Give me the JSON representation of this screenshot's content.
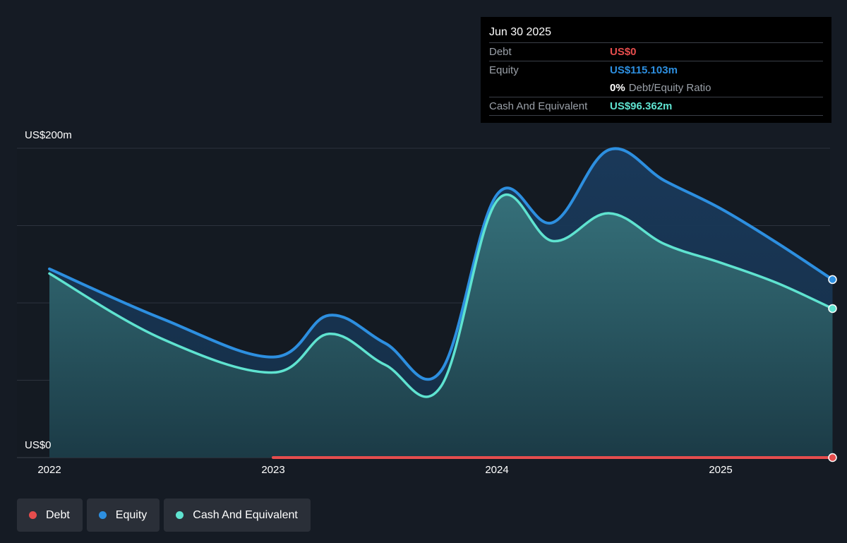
{
  "colors": {
    "background": "#151b24",
    "debt": "#e64d4d",
    "equity": "#2d8fe0",
    "cash": "#5fe3d0",
    "grid": "#2c333d"
  },
  "tooltip": {
    "date": "Jun 30 2025",
    "rows": [
      {
        "label": "Debt",
        "value": "US$0"
      },
      {
        "label": "Equity",
        "value": "US$115.103m"
      },
      {
        "ratio_pct": "0%",
        "ratio_label": "Debt/Equity Ratio"
      },
      {
        "label": "Cash And Equivalent",
        "value": "US$96.362m"
      }
    ]
  },
  "y_axis": {
    "top_label": "US$200m",
    "bottom_label": "US$0"
  },
  "x_axis": {
    "ticks": [
      "2022",
      "2023",
      "2024",
      "2025"
    ]
  },
  "legend": [
    {
      "label": "Debt",
      "color_key": "debt"
    },
    {
      "label": "Equity",
      "color_key": "equity"
    },
    {
      "label": "Cash And Equivalent",
      "color_key": "cash"
    }
  ],
  "chart_data": {
    "type": "area",
    "ylim": [
      0,
      200
    ],
    "x_ticks": [
      2022,
      2023,
      2024,
      2025
    ],
    "grid": true,
    "legend_position": "bottom-left",
    "series": [
      {
        "name": "Equity",
        "x": [
          2022.0,
          2022.5,
          2023.0,
          2023.25,
          2023.5,
          2023.75,
          2024.0,
          2024.25,
          2024.5,
          2024.75,
          2025.0,
          2025.25,
          2025.5
        ],
        "values": [
          122,
          90,
          65,
          92,
          74,
          56,
          170,
          152,
          199,
          179,
          161,
          139,
          115.103
        ]
      },
      {
        "name": "Cash And Equivalent",
        "x": [
          2022.0,
          2022.5,
          2023.0,
          2023.25,
          2023.5,
          2023.75,
          2024.0,
          2024.25,
          2024.5,
          2024.75,
          2025.0,
          2025.25,
          2025.5
        ],
        "values": [
          119,
          77,
          55,
          80,
          60,
          46,
          166,
          140,
          158,
          138,
          126,
          113,
          96.362
        ]
      },
      {
        "name": "Debt",
        "x": [
          2023.0,
          2025.5
        ],
        "values": [
          0,
          0
        ]
      }
    ]
  }
}
